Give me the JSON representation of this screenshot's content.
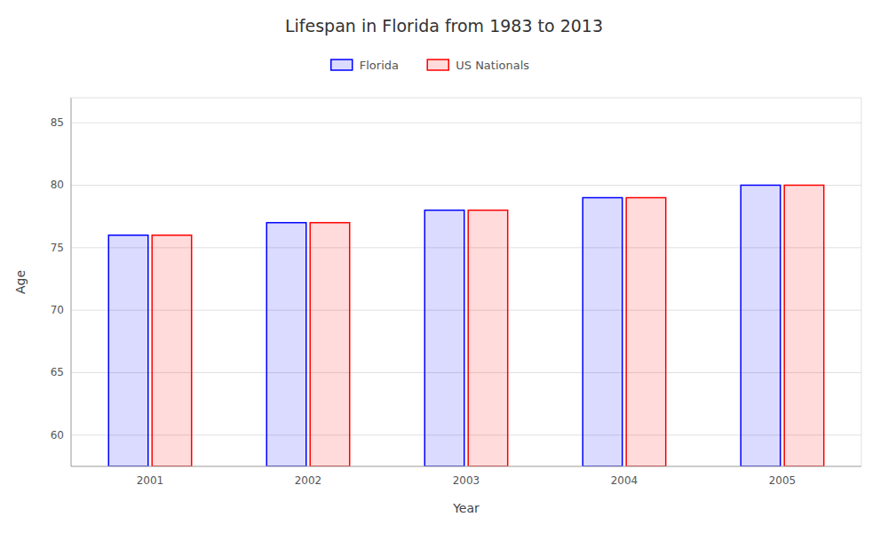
{
  "chart_data": {
    "type": "bar",
    "title": "Lifespan in Florida from 1983 to 2013",
    "x_label": "Year",
    "y_label": "Age",
    "categories": [
      "2001",
      "2002",
      "2003",
      "2004",
      "2005"
    ],
    "series": [
      {
        "name": "Florida",
        "color": "#0000ff",
        "values": [
          76,
          77,
          78,
          79,
          80
        ]
      },
      {
        "name": "US Nationals",
        "color": "#ff0000",
        "values": [
          76,
          77,
          78,
          79,
          80
        ]
      }
    ],
    "ylim": [
      57.5,
      87
    ],
    "yticks": [
      60,
      65,
      70,
      75,
      80,
      85
    ],
    "grid": true,
    "legend": "top"
  }
}
